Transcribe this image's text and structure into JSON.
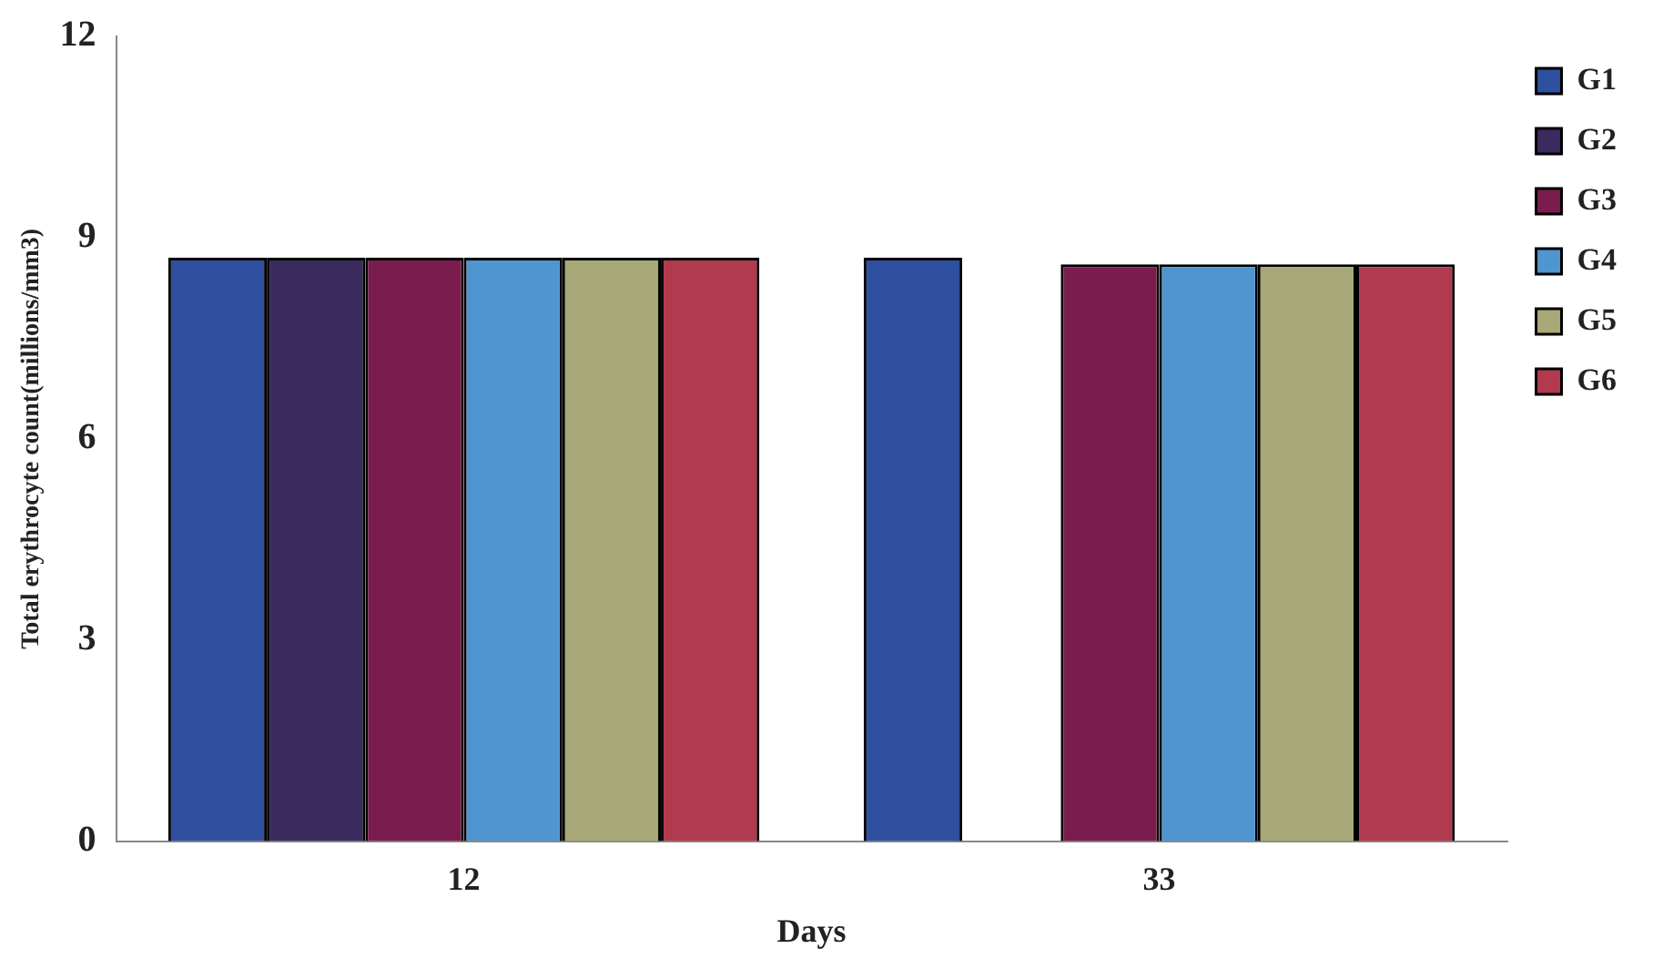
{
  "chart_data": {
    "type": "bar",
    "xlabel": "Days",
    "ylabel": "Total erythrocyte count(millions/mm3)",
    "categories": [
      "12",
      "33"
    ],
    "series": [
      {
        "name": "G1",
        "color": "#2f4f9f",
        "values": [
          8.7,
          8.7
        ]
      },
      {
        "name": "G2",
        "color": "#3b2a5e",
        "values": [
          8.7,
          null
        ]
      },
      {
        "name": "G3",
        "color": "#7a1d4e",
        "values": [
          8.7,
          8.6
        ]
      },
      {
        "name": "G4",
        "color": "#4f95cf",
        "values": [
          8.7,
          8.6
        ]
      },
      {
        "name": "G5",
        "color": "#a8a878",
        "values": [
          8.7,
          8.6
        ]
      },
      {
        "name": "G6",
        "color": "#b23a4e",
        "values": [
          8.7,
          8.6
        ]
      }
    ],
    "ylim": [
      0,
      12
    ],
    "yticks": [
      0,
      3,
      6,
      9,
      12
    ],
    "grid": false,
    "legend": "right"
  }
}
